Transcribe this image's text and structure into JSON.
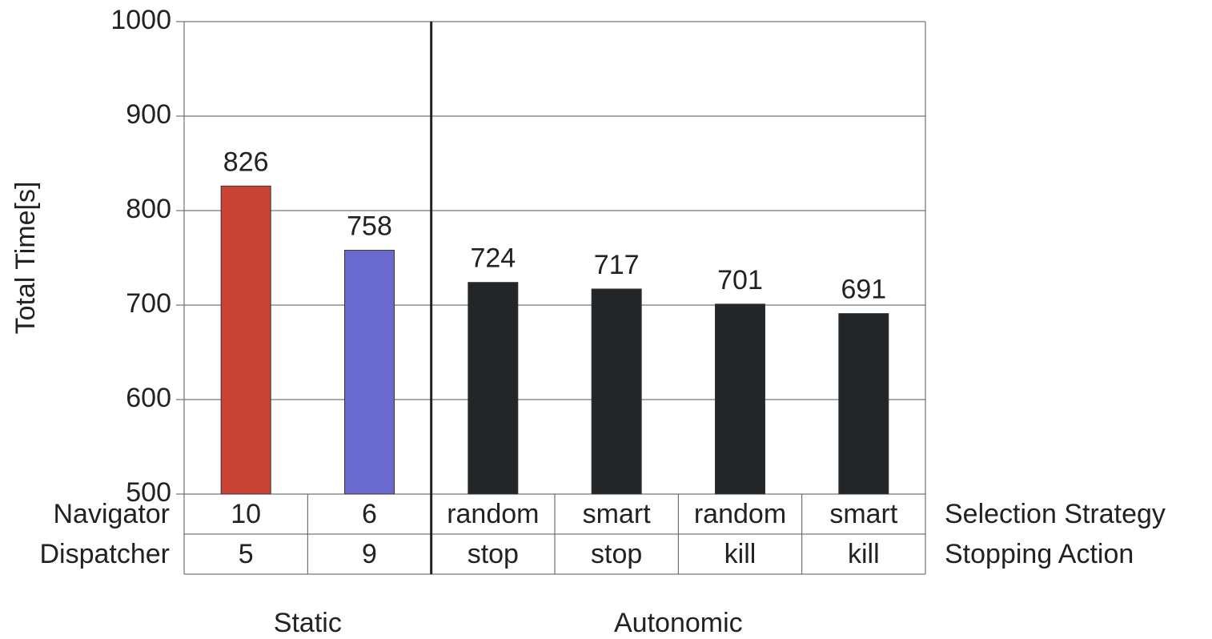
{
  "chart_data": {
    "type": "bar",
    "ylabel": "Total Time[s]",
    "values": [
      826,
      758,
      724,
      717,
      701,
      691
    ],
    "colors": [
      "#c94435",
      "#6b6bcf",
      "#232628",
      "#232628",
      "#232628",
      "#232628"
    ],
    "ylim": [
      500,
      1000
    ],
    "yticks": [
      500,
      600,
      700,
      800,
      900,
      1000
    ],
    "grid": true,
    "table": {
      "rows": [
        {
          "label": "Navigator",
          "right_label": "Selection Strategy",
          "cells": [
            "10",
            "6",
            "random",
            "smart",
            "random",
            "smart"
          ]
        },
        {
          "label": "Dispatcher",
          "right_label": "Stopping Action",
          "cells": [
            "5",
            "9",
            "stop",
            "stop",
            "kill",
            "kill"
          ]
        }
      ]
    },
    "groups": [
      "Static",
      "Autonomic"
    ]
  }
}
